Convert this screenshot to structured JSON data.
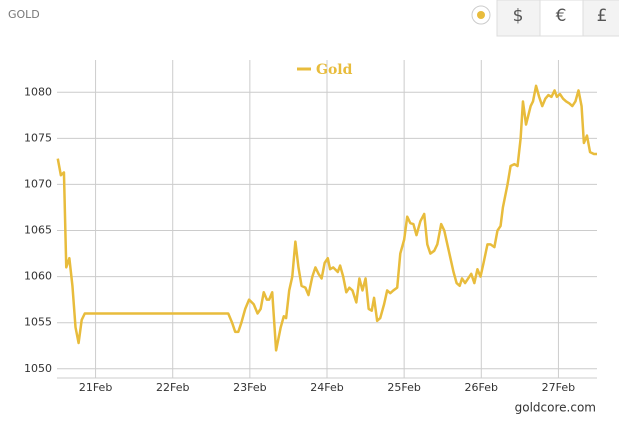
{
  "toolbar": {
    "title": "GOLD",
    "currencies": [
      "$",
      "€",
      "£"
    ]
  },
  "chart_data": {
    "type": "line",
    "legend": "top-center",
    "source": "goldcore.com",
    "grid": true,
    "xlim": [
      20.5,
      27.5
    ],
    "xticks": [
      {
        "value": 21,
        "label": "21Feb"
      },
      {
        "value": 22,
        "label": "22Feb"
      },
      {
        "value": 23,
        "label": "23Feb"
      },
      {
        "value": 24,
        "label": "24Feb"
      },
      {
        "value": 25,
        "label": "25Feb"
      },
      {
        "value": 26,
        "label": "26Feb"
      },
      {
        "value": 27,
        "label": "27Feb"
      }
    ],
    "ylim": [
      1049,
      1083.5
    ],
    "yticks": [
      1050,
      1055,
      1060,
      1065,
      1070,
      1075,
      1080
    ],
    "x": [
      20.51,
      20.55,
      20.59,
      20.62,
      20.66,
      20.7,
      20.74,
      20.78,
      20.82,
      20.86,
      22.72,
      22.77,
      22.81,
      22.85,
      22.89,
      22.94,
      22.99,
      23.05,
      23.1,
      23.14,
      23.18,
      23.22,
      23.25,
      23.29,
      23.34,
      23.4,
      23.44,
      23.47,
      23.51,
      23.55,
      23.59,
      23.63,
      23.67,
      23.72,
      23.76,
      23.81,
      23.85,
      23.89,
      23.93,
      23.97,
      24.01,
      24.04,
      24.08,
      24.14,
      24.17,
      24.21,
      24.25,
      24.29,
      24.33,
      24.38,
      24.42,
      24.46,
      24.5,
      24.54,
      24.58,
      24.61,
      24.65,
      24.69,
      24.74,
      24.78,
      24.82,
      24.86,
      24.91,
      24.95,
      25.0,
      25.04,
      25.08,
      25.12,
      25.16,
      25.21,
      25.26,
      25.3,
      25.34,
      25.39,
      25.43,
      25.48,
      25.52,
      25.56,
      25.6,
      25.64,
      25.68,
      25.72,
      25.75,
      25.79,
      25.83,
      25.87,
      25.91,
      25.95,
      25.99,
      26.03,
      26.08,
      26.12,
      26.17,
      26.21,
      26.25,
      26.28,
      26.34,
      26.38,
      26.43,
      26.47,
      26.51,
      26.54,
      26.58,
      26.64,
      26.67,
      26.71,
      26.75,
      26.79,
      26.83,
      26.87,
      26.91,
      26.95,
      26.98,
      27.02,
      27.06,
      27.1,
      27.14,
      27.18,
      27.22,
      27.26,
      27.3,
      27.33,
      27.37,
      27.41,
      27.46,
      27.5
    ],
    "series": [
      {
        "name": "Gold",
        "color": "#e8bc3c",
        "values": [
          1072.8,
          1071,
          1071.3,
          1061,
          1062,
          1059,
          1054.5,
          1052.8,
          1055.3,
          1056,
          1056,
          1055,
          1054,
          1054,
          1055,
          1056.5,
          1057.5,
          1057,
          1056,
          1056.5,
          1058.3,
          1057.5,
          1057.5,
          1058.3,
          1052,
          1054.5,
          1055.7,
          1055.5,
          1058.5,
          1060,
          1063.8,
          1061,
          1059,
          1058.8,
          1058,
          1060,
          1061,
          1060.3,
          1059.8,
          1061.5,
          1062,
          1060.8,
          1061,
          1060.5,
          1061.2,
          1060,
          1058.3,
          1058.8,
          1058.5,
          1057.2,
          1059.8,
          1058.5,
          1059.8,
          1056.5,
          1056.3,
          1057.7,
          1055.2,
          1055.5,
          1057,
          1058.5,
          1058.2,
          1058.5,
          1058.8,
          1062.5,
          1064,
          1066.5,
          1065.8,
          1065.7,
          1064.5,
          1066,
          1066.8,
          1063.5,
          1062.5,
          1062.8,
          1063.5,
          1065.7,
          1065,
          1063.5,
          1062,
          1060.5,
          1059.3,
          1059,
          1059.8,
          1059.3,
          1059.8,
          1060.3,
          1059.3,
          1060.8,
          1060,
          1061.5,
          1063.5,
          1063.5,
          1063.2,
          1065,
          1065.5,
          1067.5,
          1070,
          1072,
          1072.2,
          1072,
          1075,
          1079,
          1076.5,
          1078.5,
          1079,
          1080.7,
          1079.5,
          1078.5,
          1079.3,
          1079.7,
          1079.5,
          1080.2,
          1079.5,
          1079.8,
          1079.3,
          1079,
          1078.8,
          1078.5,
          1079,
          1080.2,
          1078.5,
          1074.5,
          1075.3,
          1073.5,
          1073.3,
          1073.3
        ]
      }
    ]
  }
}
